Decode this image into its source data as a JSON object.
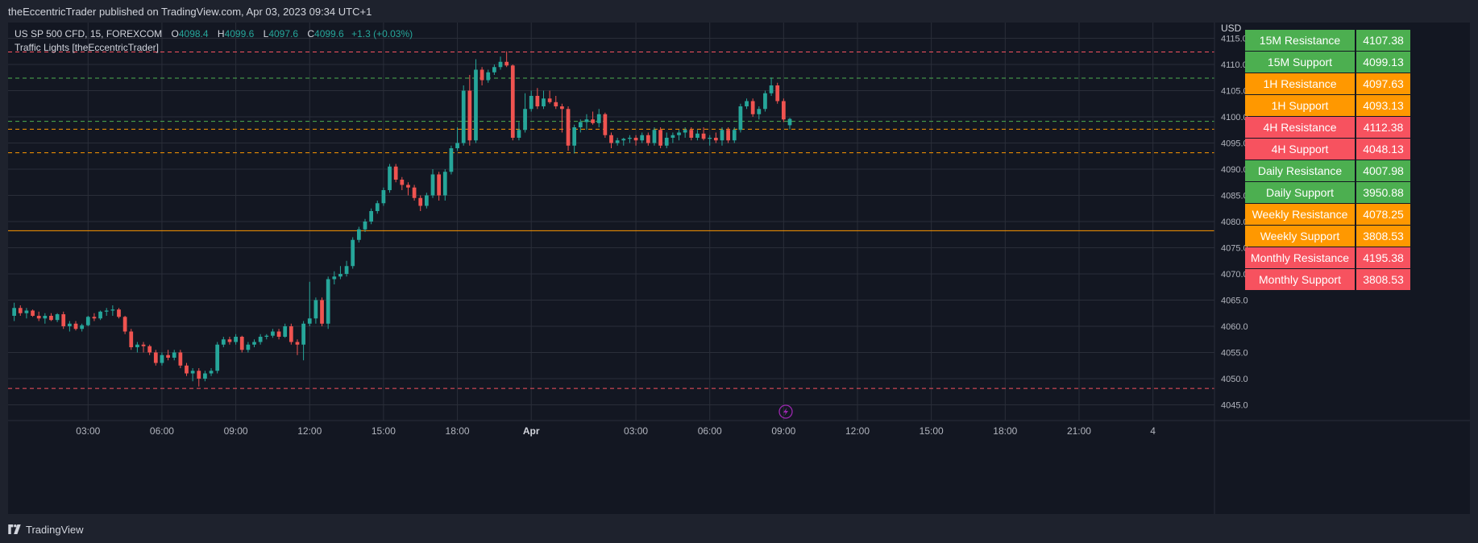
{
  "header": {
    "publisher": "theEccentricTrader published on TradingView.com, Apr 03, 2023 09:34 UTC+1"
  },
  "legend": {
    "symbol": "US SP 500 CFD, 15, FOREXCOM",
    "o_label": "O",
    "o_value": "4098.4",
    "h_label": "H",
    "h_value": "4099.6",
    "l_label": "L",
    "l_value": "4097.6",
    "c_label": "C",
    "c_value": "4099.6",
    "change": "+1.3 (+0.03%)",
    "indicator": "Traffic Lights [theEccentricTrader]"
  },
  "levels_table": [
    {
      "label": "15M Resistance",
      "value": "4107.38",
      "color": "#4caf50"
    },
    {
      "label": "15M Support",
      "value": "4099.13",
      "color": "#4caf50"
    },
    {
      "label": "1H Resistance",
      "value": "4097.63",
      "color": "#ff9800"
    },
    {
      "label": "1H Support",
      "value": "4093.13",
      "color": "#ff9800"
    },
    {
      "label": "4H Resistance",
      "value": "4112.38",
      "color": "#f7525f"
    },
    {
      "label": "4H Support",
      "value": "4048.13",
      "color": "#f7525f"
    },
    {
      "label": "Daily Resistance",
      "value": "4007.98",
      "color": "#4caf50"
    },
    {
      "label": "Daily Support",
      "value": "3950.88",
      "color": "#4caf50"
    },
    {
      "label": "Weekly Resistance",
      "value": "4078.25",
      "color": "#ff9800"
    },
    {
      "label": "Weekly Support",
      "value": "3808.53",
      "color": "#ff9800"
    },
    {
      "label": "Monthly Resistance",
      "value": "4195.38",
      "color": "#f7525f"
    },
    {
      "label": "Monthly Support",
      "value": "3808.53",
      "color": "#f7525f"
    }
  ],
  "footer": {
    "brand": "TradingView"
  },
  "colors": {
    "up": "#26a69a",
    "down": "#ef5350",
    "background": "#131722",
    "grid": "#2a2e39",
    "axis_text": "#b2b5be"
  },
  "chart_data": {
    "type": "candlestick",
    "y_unit": "USD",
    "ylim": [
      4042.0,
      4118.0
    ],
    "y_ticks": [
      "4045.0",
      "4050.0",
      "4055.0",
      "4060.0",
      "4065.0",
      "4070.0",
      "4075.0",
      "4080.0",
      "4085.0",
      "4090.0",
      "4095.0",
      "4100.0",
      "4105.0",
      "4110.0",
      "4115.0"
    ],
    "x_ticks": [
      {
        "label": "03:00",
        "t": 12,
        "bold": false
      },
      {
        "label": "06:00",
        "t": 24,
        "bold": false
      },
      {
        "label": "09:00",
        "t": 36,
        "bold": false
      },
      {
        "label": "12:00",
        "t": 48,
        "bold": false
      },
      {
        "label": "15:00",
        "t": 60,
        "bold": false
      },
      {
        "label": "18:00",
        "t": 72,
        "bold": false
      },
      {
        "label": "Apr",
        "t": 84,
        "bold": true
      },
      {
        "label": "03:00",
        "t": 101,
        "bold": false
      },
      {
        "label": "06:00",
        "t": 113,
        "bold": false
      },
      {
        "label": "09:00",
        "t": 125,
        "bold": false
      },
      {
        "label": "12:00",
        "t": 137,
        "bold": false
      },
      {
        "label": "15:00",
        "t": 149,
        "bold": false
      },
      {
        "label": "18:00",
        "t": 161,
        "bold": false
      },
      {
        "label": "21:00",
        "t": 173,
        "bold": false
      },
      {
        "label": "4",
        "t": 185,
        "bold": false
      }
    ],
    "xlim": [
      -1,
      195
    ],
    "horizontal_levels": [
      {
        "value": 4112.38,
        "color": "#f7525f",
        "style": "dashed"
      },
      {
        "value": 4107.38,
        "color": "#4caf50",
        "style": "dashed"
      },
      {
        "value": 4099.13,
        "color": "#4caf50",
        "style": "dashed"
      },
      {
        "value": 4097.63,
        "color": "#ff9800",
        "style": "dashed"
      },
      {
        "value": 4093.13,
        "color": "#ff9800",
        "style": "dashed"
      },
      {
        "value": 4078.25,
        "color": "#ff9800",
        "style": "solid"
      },
      {
        "value": 4048.13,
        "color": "#f7525f",
        "style": "dashed"
      }
    ],
    "candles": [
      [
        0,
        4062.0,
        4064.5,
        4061.0,
        4063.5
      ],
      [
        1,
        4063.5,
        4064.0,
        4062.0,
        4062.5
      ],
      [
        2,
        4062.5,
        4063.5,
        4061.5,
        4063.0
      ],
      [
        3,
        4063.0,
        4063.2,
        4061.8,
        4062.0
      ],
      [
        4,
        4062.0,
        4062.8,
        4061.0,
        4061.5
      ],
      [
        5,
        4061.5,
        4062.5,
        4060.5,
        4062.0
      ],
      [
        6,
        4062.0,
        4062.5,
        4061.0,
        4061.2
      ],
      [
        7,
        4061.2,
        4062.5,
        4060.8,
        4062.3
      ],
      [
        8,
        4062.3,
        4062.8,
        4059.5,
        4060.0
      ],
      [
        9,
        4060.0,
        4061.0,
        4059.0,
        4060.5
      ],
      [
        10,
        4060.5,
        4061.0,
        4059.2,
        4059.5
      ],
      [
        11,
        4059.5,
        4060.5,
        4059.0,
        4060.2
      ],
      [
        12,
        4060.2,
        4062.0,
        4060.0,
        4061.8
      ],
      [
        13,
        4061.8,
        4062.5,
        4061.0,
        4061.5
      ],
      [
        14,
        4061.5,
        4063.0,
        4061.2,
        4062.8
      ],
      [
        15,
        4062.8,
        4063.5,
        4062.0,
        4063.0
      ],
      [
        16,
        4063.0,
        4064.0,
        4062.0,
        4063.2
      ],
      [
        17,
        4063.2,
        4063.5,
        4061.5,
        4061.8
      ],
      [
        18,
        4061.8,
        4062.0,
        4058.5,
        4059.0
      ],
      [
        19,
        4059.0,
        4059.5,
        4055.5,
        4056.0
      ],
      [
        20,
        4056.0,
        4057.0,
        4055.0,
        4056.5
      ],
      [
        21,
        4056.5,
        4057.0,
        4055.0,
        4056.2
      ],
      [
        22,
        4056.2,
        4056.5,
        4054.5,
        4055.0
      ],
      [
        23,
        4055.0,
        4055.5,
        4052.5,
        4053.0
      ],
      [
        24,
        4053.0,
        4055.0,
        4052.5,
        4054.5
      ],
      [
        25,
        4054.5,
        4055.5,
        4053.5,
        4054.0
      ],
      [
        26,
        4054.0,
        4055.5,
        4053.5,
        4055.0
      ],
      [
        27,
        4055.0,
        4055.5,
        4052.0,
        4052.5
      ],
      [
        28,
        4052.5,
        4053.0,
        4050.5,
        4051.0
      ],
      [
        29,
        4051.0,
        4052.0,
        4049.5,
        4051.5
      ],
      [
        30,
        4051.5,
        4052.0,
        4048.5,
        4050.0
      ],
      [
        31,
        4050.0,
        4051.5,
        4049.5,
        4051.0
      ],
      [
        32,
        4051.0,
        4052.0,
        4050.5,
        4051.5
      ],
      [
        33,
        4051.5,
        4057.0,
        4051.0,
        4056.5
      ],
      [
        34,
        4056.5,
        4058.0,
        4056.0,
        4057.5
      ],
      [
        35,
        4057.5,
        4058.0,
        4056.5,
        4057.0
      ],
      [
        36,
        4057.0,
        4058.5,
        4056.5,
        4058.0
      ],
      [
        37,
        4058.0,
        4058.2,
        4055.0,
        4055.5
      ],
      [
        38,
        4055.5,
        4057.0,
        4055.0,
        4056.5
      ],
      [
        39,
        4056.5,
        4057.5,
        4056.0,
        4057.0
      ],
      [
        40,
        4057.0,
        4058.5,
        4056.5,
        4058.0
      ],
      [
        41,
        4058.0,
        4058.5,
        4057.5,
        4058.2
      ],
      [
        42,
        4058.2,
        4059.5,
        4057.8,
        4059.0
      ],
      [
        43,
        4059.0,
        4059.5,
        4057.5,
        4058.0
      ],
      [
        44,
        4058.0,
        4060.5,
        4057.8,
        4060.0
      ],
      [
        45,
        4060.0,
        4060.5,
        4056.5,
        4057.0
      ],
      [
        46,
        4057.0,
        4057.5,
        4054.5,
        4056.5
      ],
      [
        47,
        4056.5,
        4061.0,
        4053.5,
        4060.5
      ],
      [
        48,
        4060.5,
        4068.5,
        4060.0,
        4061.5
      ],
      [
        49,
        4061.5,
        4065.5,
        4060.5,
        4065.0
      ],
      [
        50,
        4065.0,
        4065.5,
        4060.0,
        4060.5
      ],
      [
        51,
        4060.5,
        4069.5,
        4059.5,
        4069.0
      ],
      [
        52,
        4069.0,
        4070.5,
        4068.0,
        4069.5
      ],
      [
        53,
        4069.5,
        4071.5,
        4069.0,
        4070.0
      ],
      [
        54,
        4070.0,
        4072.5,
        4069.5,
        4071.5
      ],
      [
        55,
        4071.5,
        4077.0,
        4071.0,
        4076.5
      ],
      [
        56,
        4076.5,
        4079.0,
        4076.0,
        4078.5
      ],
      [
        57,
        4078.5,
        4080.5,
        4078.0,
        4080.0
      ],
      [
        58,
        4080.0,
        4082.5,
        4079.5,
        4082.0
      ],
      [
        59,
        4082.0,
        4084.0,
        4081.5,
        4083.5
      ],
      [
        60,
        4083.5,
        4086.5,
        4083.0,
        4086.0
      ],
      [
        61,
        4086.0,
        4091.0,
        4085.5,
        4090.5
      ],
      [
        62,
        4090.5,
        4091.0,
        4087.5,
        4088.0
      ],
      [
        63,
        4088.0,
        4088.5,
        4086.0,
        4087.0
      ],
      [
        64,
        4087.0,
        4087.5,
        4085.0,
        4086.5
      ],
      [
        65,
        4086.5,
        4087.0,
        4084.0,
        4084.5
      ],
      [
        66,
        4084.5,
        4085.0,
        4082.0,
        4083.0
      ],
      [
        67,
        4083.0,
        4085.5,
        4082.5,
        4085.0
      ],
      [
        68,
        4085.0,
        4090.0,
        4084.5,
        4089.0
      ],
      [
        69,
        4089.0,
        4089.5,
        4084.0,
        4085.0
      ],
      [
        70,
        4085.0,
        4090.0,
        4084.0,
        4089.5
      ],
      [
        71,
        4089.5,
        4094.5,
        4089.0,
        4094.0
      ],
      [
        72,
        4094.0,
        4098.0,
        4093.5,
        4095.0
      ],
      [
        73,
        4095.0,
        4106.0,
        4094.5,
        4105.0
      ],
      [
        74,
        4105.0,
        4108.0,
        4094.5,
        4095.5
      ],
      [
        75,
        4095.5,
        4111.0,
        4095.0,
        4109.0
      ],
      [
        76,
        4109.0,
        4109.5,
        4106.0,
        4107.0
      ],
      [
        77,
        4107.0,
        4109.0,
        4106.5,
        4108.5
      ],
      [
        78,
        4108.5,
        4110.0,
        4108.0,
        4109.5
      ],
      [
        79,
        4109.5,
        4111.5,
        4109.0,
        4110.5
      ],
      [
        80,
        4110.5,
        4112.5,
        4109.5,
        4109.8
      ],
      [
        81,
        4109.8,
        4110.0,
        4095.5,
        4096.0
      ],
      [
        82,
        4096.0,
        4099.0,
        4095.5,
        4097.5
      ],
      [
        83,
        4097.5,
        4104.5,
        4097.0,
        4101.5
      ],
      [
        84,
        4101.5,
        4105.0,
        4101.0,
        4104.0
      ],
      [
        85,
        4104.0,
        4105.5,
        4101.5,
        4102.0
      ],
      [
        86,
        4102.0,
        4105.0,
        4101.5,
        4103.5
      ],
      [
        87,
        4103.5,
        4105.0,
        4102.5,
        4102.8
      ],
      [
        88,
        4102.8,
        4104.0,
        4101.5,
        4102.0
      ],
      [
        89,
        4102.0,
        4102.5,
        4097.0,
        4101.5
      ],
      [
        90,
        4101.5,
        4102.0,
        4093.5,
        4094.5
      ],
      [
        91,
        4094.5,
        4098.5,
        4093.0,
        4098.0
      ],
      [
        92,
        4098.0,
        4099.5,
        4097.0,
        4099.0
      ],
      [
        93,
        4099.0,
        4100.5,
        4097.5,
        4099.5
      ],
      [
        94,
        4099.5,
        4101.0,
        4098.5,
        4098.8
      ],
      [
        95,
        4098.8,
        4101.5,
        4098.0,
        4100.5
      ],
      [
        96,
        4100.5,
        4100.8,
        4096.0,
        4096.5
      ],
      [
        97,
        4096.5,
        4097.0,
        4094.0,
        4095.0
      ],
      [
        98,
        4095.0,
        4096.0,
        4094.5,
        4095.5
      ],
      [
        99,
        4095.5,
        4096.0,
        4094.5,
        4095.8
      ],
      [
        100,
        4095.8,
        4096.5,
        4095.0,
        4096.0
      ],
      [
        101,
        4096.0,
        4096.5,
        4094.5,
        4095.5
      ],
      [
        102,
        4095.5,
        4097.0,
        4095.0,
        4096.5
      ],
      [
        103,
        4096.5,
        4097.0,
        4094.5,
        4095.0
      ],
      [
        104,
        4095.0,
        4098.0,
        4094.5,
        4097.5
      ],
      [
        105,
        4097.5,
        4098.0,
        4094.0,
        4094.5
      ],
      [
        106,
        4094.5,
        4097.0,
        4094.0,
        4096.0
      ],
      [
        107,
        4096.0,
        4097.0,
        4095.0,
        4096.5
      ],
      [
        108,
        4096.5,
        4097.5,
        4095.5,
        4097.0
      ],
      [
        109,
        4097.0,
        4098.0,
        4096.0,
        4097.5
      ],
      [
        110,
        4097.5,
        4098.0,
        4095.5,
        4096.0
      ],
      [
        111,
        4096.0,
        4097.5,
        4095.5,
        4096.8
      ],
      [
        112,
        4096.8,
        4098.0,
        4095.5,
        4095.8
      ],
      [
        113,
        4095.8,
        4096.5,
        4094.5,
        4096.0
      ],
      [
        114,
        4096.0,
        4097.0,
        4095.0,
        4095.5
      ],
      [
        115,
        4095.5,
        4098.0,
        4094.5,
        4097.5
      ],
      [
        116,
        4097.5,
        4098.0,
        4095.0,
        4095.5
      ],
      [
        117,
        4095.5,
        4098.0,
        4095.0,
        4097.5
      ],
      [
        118,
        4097.5,
        4102.5,
        4097.0,
        4102.0
      ],
      [
        119,
        4102.0,
        4103.5,
        4101.5,
        4103.0
      ],
      [
        120,
        4103.0,
        4103.5,
        4100.0,
        4100.5
      ],
      [
        121,
        4100.5,
        4102.0,
        4099.5,
        4101.5
      ],
      [
        122,
        4101.5,
        4105.0,
        4101.0,
        4104.5
      ],
      [
        123,
        4104.5,
        4107.5,
        4104.0,
        4106.0
      ],
      [
        124,
        4106.0,
        4106.5,
        4102.5,
        4103.0
      ],
      [
        125,
        4103.0,
        4103.5,
        4099.0,
        4099.5
      ],
      [
        126,
        4098.4,
        4099.8,
        4097.6,
        4099.6
      ]
    ]
  }
}
